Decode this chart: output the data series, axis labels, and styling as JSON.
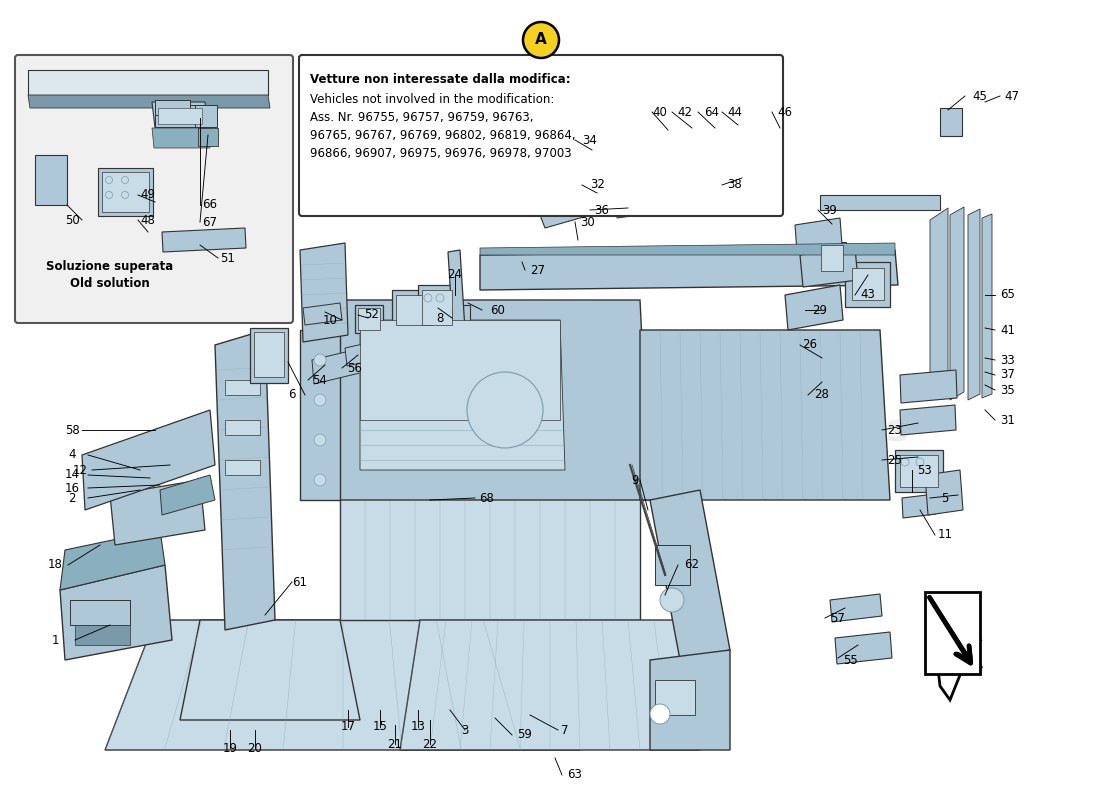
{
  "bg": "#ffffff",
  "part_fill": "#afc8d8",
  "part_edge": "#333333",
  "part_light": "#c8dce8",
  "part_dark": "#7a9aaa",
  "part_shadow": "#8ab0c0",
  "inset_bg": "#f0f0f0",
  "inset_edge": "#555555",
  "ann_fill": "#ffffff",
  "ann_edge": "#333333",
  "a_fill": "#f5d020",
  "wm_color": "#c0c8c8",
  "label_fs": 8.5,
  "bold_fs": 9.5,
  "ann_text_bold": "Vetture non interessate dalla modifica:",
  "ann_text_normal": "Vehicles not involved in the modification:\nAss. Nr. 96755, 96757, 96759, 96763,\n96765, 96767, 96769, 96802, 96819, 96864,\n96866, 96907, 96975, 96976, 96978, 97003",
  "inset_label": "Soluzione superata\nOld solution",
  "labels": [
    [
      "1",
      55,
      640
    ],
    [
      "2",
      72,
      498
    ],
    [
      "3",
      465,
      730
    ],
    [
      "4",
      72,
      455
    ],
    [
      "5",
      945,
      498
    ],
    [
      "6",
      292,
      395
    ],
    [
      "7",
      565,
      730
    ],
    [
      "8",
      440,
      318
    ],
    [
      "9",
      635,
      480
    ],
    [
      "10",
      330,
      320
    ],
    [
      "11",
      945,
      535
    ],
    [
      "12",
      80,
      470
    ],
    [
      "13",
      418,
      727
    ],
    [
      "14",
      72,
      475
    ],
    [
      "15",
      380,
      727
    ],
    [
      "16",
      72,
      488
    ],
    [
      "17",
      348,
      727
    ],
    [
      "18",
      55,
      565
    ],
    [
      "19",
      230,
      748
    ],
    [
      "20",
      255,
      748
    ],
    [
      "21",
      395,
      744
    ],
    [
      "22",
      430,
      744
    ],
    [
      "23",
      895,
      430
    ],
    [
      "24",
      455,
      275
    ],
    [
      "25",
      895,
      460
    ],
    [
      "26",
      810,
      345
    ],
    [
      "27",
      538,
      270
    ],
    [
      "28",
      822,
      395
    ],
    [
      "29",
      820,
      310
    ],
    [
      "30",
      588,
      222
    ],
    [
      "31",
      1008,
      420
    ],
    [
      "32",
      598,
      185
    ],
    [
      "33",
      1008,
      360
    ],
    [
      "34",
      590,
      140
    ],
    [
      "35",
      1008,
      390
    ],
    [
      "36",
      602,
      210
    ],
    [
      "37",
      1008,
      375
    ],
    [
      "38",
      735,
      185
    ],
    [
      "39",
      830,
      210
    ],
    [
      "40",
      660,
      112
    ],
    [
      "41",
      1008,
      330
    ],
    [
      "42",
      685,
      112
    ],
    [
      "43",
      868,
      295
    ],
    [
      "44",
      735,
      112
    ],
    [
      "45",
      980,
      96
    ],
    [
      "46",
      785,
      112
    ],
    [
      "47",
      1012,
      96
    ],
    [
      "48",
      148,
      220
    ],
    [
      "49",
      148,
      195
    ],
    [
      "50",
      72,
      220
    ],
    [
      "51",
      228,
      258
    ],
    [
      "52",
      372,
      315
    ],
    [
      "53",
      925,
      470
    ],
    [
      "54",
      320,
      380
    ],
    [
      "55",
      850,
      660
    ],
    [
      "56",
      355,
      368
    ],
    [
      "57",
      838,
      618
    ],
    [
      "58",
      72,
      430
    ],
    [
      "59",
      525,
      735
    ],
    [
      "60",
      498,
      310
    ],
    [
      "61",
      300,
      582
    ],
    [
      "62",
      692,
      565
    ],
    [
      "63",
      575,
      775
    ],
    [
      "64",
      712,
      112
    ],
    [
      "65",
      1008,
      295
    ],
    [
      "66",
      210,
      205
    ],
    [
      "67",
      210,
      222
    ],
    [
      "68",
      487,
      498
    ]
  ]
}
